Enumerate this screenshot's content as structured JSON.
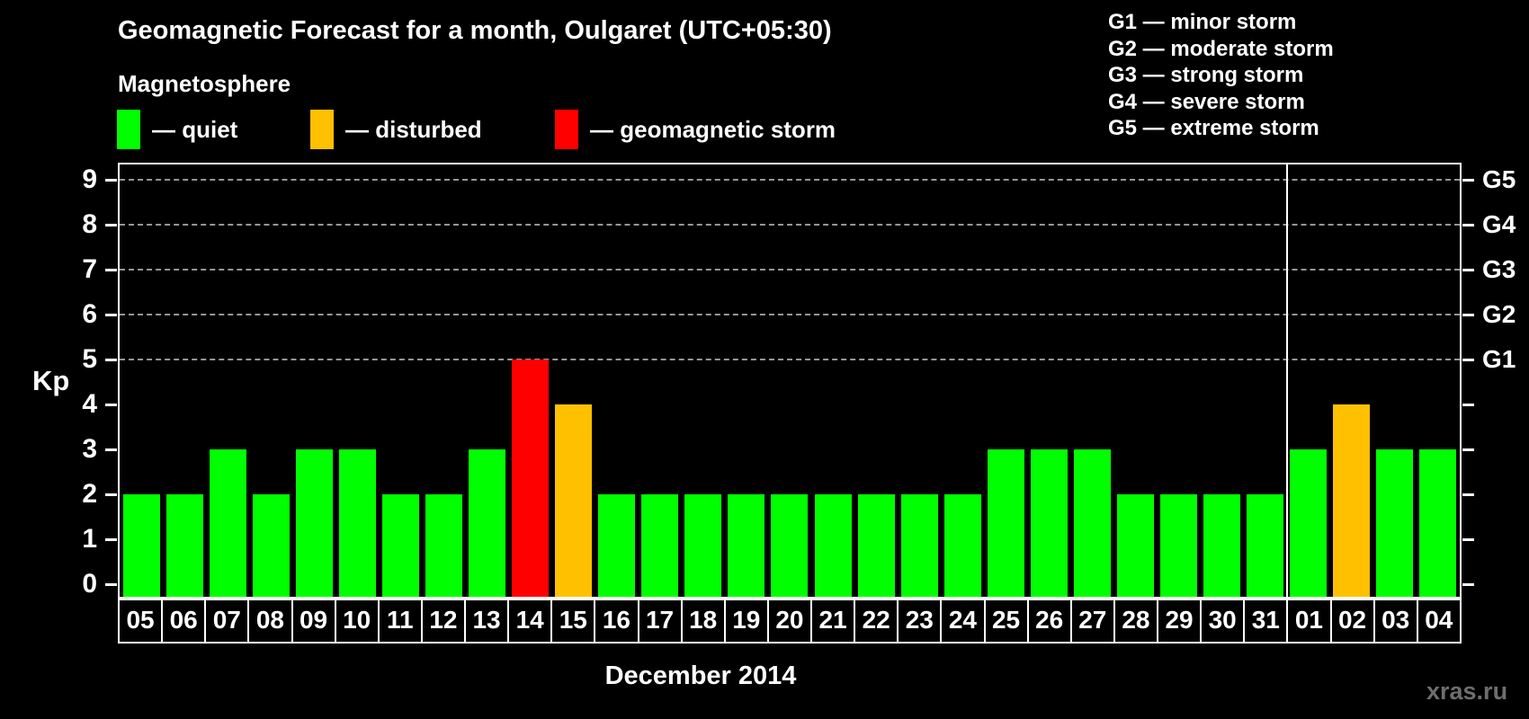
{
  "title": "Geomagnetic Forecast for a month, Oulgaret (UTC+05:30)",
  "section_label": "Magnetosphere",
  "legend": {
    "items": [
      {
        "name": "quiet",
        "label": "— quiet",
        "color": "#00ff00"
      },
      {
        "name": "disturbed",
        "label": "— disturbed",
        "color": "#ffc000"
      },
      {
        "name": "geomagnetic-storm",
        "label": "— geomagnetic storm",
        "color": "#ff0000"
      }
    ]
  },
  "storm_scale": {
    "items": [
      {
        "code": "G1",
        "label": "minor storm",
        "text": "G1 — minor storm",
        "kp": 5
      },
      {
        "code": "G2",
        "label": "moderate storm",
        "text": "G2 — moderate storm",
        "kp": 6
      },
      {
        "code": "G3",
        "label": "strong storm",
        "text": "G3 — strong storm",
        "kp": 7
      },
      {
        "code": "G4",
        "label": "severe storm",
        "text": "G4 — severe storm",
        "kp": 8
      },
      {
        "code": "G5",
        "label": "extreme storm",
        "text": "G5 — extreme storm",
        "kp": 9
      }
    ]
  },
  "chart_data": {
    "type": "bar",
    "title": "Geomagnetic Forecast for a month, Oulgaret (UTC+05:30)",
    "xlabel": "December 2014",
    "ylabel": "Kp",
    "ylim": [
      0,
      9
    ],
    "yticks": [
      0,
      1,
      2,
      3,
      4,
      5,
      6,
      7,
      8,
      9
    ],
    "grid": "horizontal dashed lines at Kp 5-9 (G1-G5 levels)",
    "legend_position": "top-left",
    "right_axis": "G-scale labels G1-G5 at Kp 5-9",
    "categories": [
      "05",
      "06",
      "07",
      "08",
      "09",
      "10",
      "11",
      "12",
      "13",
      "14",
      "15",
      "16",
      "17",
      "18",
      "19",
      "20",
      "21",
      "22",
      "23",
      "24",
      "25",
      "26",
      "27",
      "28",
      "29",
      "30",
      "31",
      "01",
      "02",
      "03",
      "04"
    ],
    "values": [
      2,
      2,
      3,
      2,
      3,
      3,
      2,
      2,
      3,
      5,
      4,
      2,
      2,
      2,
      2,
      2,
      2,
      2,
      2,
      2,
      3,
      3,
      3,
      2,
      2,
      2,
      2,
      3,
      4,
      3,
      3
    ],
    "statuses": [
      "quiet",
      "quiet",
      "quiet",
      "quiet",
      "quiet",
      "quiet",
      "quiet",
      "quiet",
      "quiet",
      "storm",
      "disturbed",
      "quiet",
      "quiet",
      "quiet",
      "quiet",
      "quiet",
      "quiet",
      "quiet",
      "quiet",
      "quiet",
      "quiet",
      "quiet",
      "quiet",
      "quiet",
      "quiet",
      "quiet",
      "quiet",
      "quiet",
      "disturbed",
      "quiet",
      "quiet"
    ],
    "month_separator_after_index": 26
  },
  "watermark": "xras.ru",
  "colors": {
    "background": "#000000",
    "text": "#ffffff",
    "axis": "#ffffff",
    "grid": "#969696",
    "quiet": "#00ff00",
    "disturbed": "#ffc000",
    "storm": "#ff0000",
    "watermark": "#6e6e6e"
  }
}
